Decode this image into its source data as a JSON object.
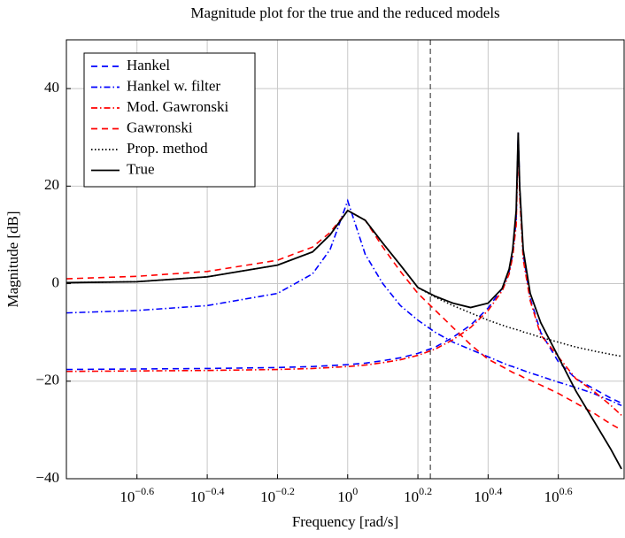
{
  "chart_data": {
    "type": "line",
    "title": "Magnitude plot for the true and the reduced models",
    "xlabel": "Frequency [rad/s]",
    "ylabel": "Magnitude [dB]",
    "xscale": "log",
    "grid": true,
    "legend": "upper left",
    "xlim": [
      0.158,
      6.13
    ],
    "ylim": [
      -40,
      50
    ],
    "xticks": [
      {
        "value": 0.251,
        "label": "10",
        "exponent": "−0.6"
      },
      {
        "value": 0.398,
        "label": "10",
        "exponent": "−0.4"
      },
      {
        "value": 0.631,
        "label": "10",
        "exponent": "−0.2"
      },
      {
        "value": 1,
        "label": "10",
        "exponent": "0"
      },
      {
        "value": 1.585,
        "label": "10",
        "exponent": "0.2"
      },
      {
        "value": 2.512,
        "label": "10",
        "exponent": "0.4"
      },
      {
        "value": 3.981,
        "label": "10",
        "exponent": "0.6"
      }
    ],
    "yticks": [
      {
        "value": -40,
        "label": "−40"
      },
      {
        "value": -20,
        "label": "−20"
      },
      0,
      20,
      40
    ],
    "vline": 1.72,
    "x": [
      0.158,
      0.251,
      0.398,
      0.631,
      0.794,
      0.891,
      1,
      1.122,
      1.259,
      1.413,
      1.585,
      1.778,
      1.995,
      2.239,
      2.512,
      2.754,
      2.884,
      2.951,
      3.02,
      3.06,
      3.09,
      3.162,
      3.311,
      3.548,
      3.981,
      4.467,
      5.012,
      5.623,
      6.026
    ],
    "series": [
      {
        "name": "Hankel",
        "color": "#0000ff",
        "style": "dashed",
        "values": [
          -17.6,
          -17.5,
          -17.4,
          -17.2,
          -17,
          -16.8,
          -16.6,
          -16.3,
          -15.8,
          -15.2,
          -14.3,
          -13,
          -11,
          -8.5,
          -5,
          -1,
          2.5,
          6,
          13,
          31,
          20,
          6,
          -3,
          -10,
          -16,
          -19.5,
          -21.5,
          -23.5,
          -24.5
        ]
      },
      {
        "name": "Hankel w. filter",
        "color": "#0000ff",
        "style": "dashdot",
        "values": [
          -6,
          -5.5,
          -4.5,
          -2,
          2,
          7,
          17,
          6,
          0,
          -4.5,
          -7.5,
          -10,
          -12,
          -13.5,
          -15,
          -16.2,
          -16.8,
          -17,
          -17.3,
          -17.4,
          -17.5,
          -17.8,
          -18.3,
          -19,
          -20.2,
          -21.3,
          -22.5,
          -24,
          -25
        ]
      },
      {
        "name": "Mod. Gawronski",
        "color": "#ff0000",
        "style": "dashdot",
        "values": [
          -18,
          -17.9,
          -17.8,
          -17.6,
          -17.4,
          -17.2,
          -17,
          -16.7,
          -16.2,
          -15.6,
          -14.7,
          -13.4,
          -11.5,
          -9,
          -5.5,
          -1.5,
          2,
          5.5,
          12,
          29,
          18,
          5,
          -3.5,
          -10.5,
          -15,
          -19.5,
          -22,
          -25,
          -27
        ]
      },
      {
        "name": "Gawronski",
        "color": "#ff0000",
        "style": "dashed",
        "values": [
          1,
          1.5,
          2.5,
          4.8,
          7.5,
          10.5,
          15,
          13,
          7.5,
          2.5,
          -2,
          -5.5,
          -9,
          -12.5,
          -15.5,
          -17,
          -17.8,
          -18.2,
          -18.5,
          -18.7,
          -18.8,
          -19.2,
          -19.8,
          -20.8,
          -22.5,
          -24.5,
          -26.5,
          -28.8,
          -30
        ]
      },
      {
        "name": "Prop. method",
        "color": "#000000",
        "style": "dotted",
        "values": [
          0.2,
          0.4,
          1.4,
          3.8,
          6.5,
          10,
          15,
          13,
          8.3,
          3.8,
          -0.8,
          -2.8,
          -4.5,
          -6,
          -7.5,
          -8.5,
          -9,
          -9.2,
          -9.4,
          -9.5,
          -9.6,
          -9.9,
          -10.3,
          -11,
          -12,
          -13,
          -13.8,
          -14.5,
          -14.9
        ]
      },
      {
        "name": "True",
        "color": "#000000",
        "style": "solid",
        "values": [
          0.2,
          0.4,
          1.4,
          3.8,
          6.5,
          10,
          15,
          13,
          8.3,
          3.8,
          -0.8,
          -2.6,
          -4,
          -4.9,
          -4,
          -1,
          3,
          7,
          15,
          31,
          20,
          7,
          -2,
          -8,
          -15,
          -22,
          -28,
          -34,
          -38
        ]
      }
    ]
  }
}
